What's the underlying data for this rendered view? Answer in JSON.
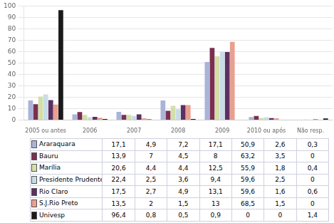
{
  "chart_data": {
    "type": "bar",
    "categories": [
      "2005 ou antes",
      "2006",
      "2007",
      "2008",
      "2009",
      "2010 ou após",
      "Não resp."
    ],
    "series": [
      {
        "name": "Araraquara",
        "color": "#aab4d8",
        "values": [
          17.1,
          4.9,
          7.2,
          17.1,
          50.9,
          2.6,
          0.3
        ],
        "value_labels": [
          "17,1",
          "4,9",
          "7,2",
          "17,1",
          "50,9",
          "2,6",
          "0,3"
        ]
      },
      {
        "name": "Bauru",
        "color": "#7b3050",
        "values": [
          13.9,
          7.0,
          4.5,
          8.0,
          63.2,
          3.5,
          0.0
        ],
        "value_labels": [
          "13,9",
          "7",
          "4,5",
          "8",
          "63,2",
          "3,5",
          "0"
        ]
      },
      {
        "name": "Marília",
        "color": "#d4dfa8",
        "values": [
          20.6,
          4.4,
          4.4,
          12.5,
          55.9,
          1.8,
          0.4
        ],
        "value_labels": [
          "20,6",
          "4,4",
          "4,4",
          "12,5",
          "55,9",
          "1,8",
          "0,4"
        ]
      },
      {
        "name": "Presidente Prudente",
        "color": "#c8dce8",
        "values": [
          22.4,
          2.5,
          3.6,
          9.4,
          59.6,
          2.5,
          0.0
        ],
        "value_labels": [
          "22,4",
          "2,5",
          "3,6",
          "9,4",
          "59,6",
          "2,5",
          "0"
        ]
      },
      {
        "name": "Rio Claro",
        "color": "#5c3060",
        "values": [
          17.5,
          2.7,
          4.9,
          13.1,
          59.6,
          1.6,
          0.6
        ],
        "value_labels": [
          "17,5",
          "2,7",
          "4,9",
          "13,1",
          "59,6",
          "1,6",
          "0,6"
        ]
      },
      {
        "name": "S.J.Rio Preto",
        "color": "#e8a090",
        "values": [
          13.5,
          2.0,
          1.5,
          13.0,
          68.5,
          1.5,
          0.0
        ],
        "value_labels": [
          "13,5",
          "2",
          "1,5",
          "13",
          "68,5",
          "1,5",
          "0"
        ]
      },
      {
        "name": "Univesp",
        "color": "#1a1a1a",
        "values": [
          96.4,
          0.8,
          0.5,
          0.9,
          0.0,
          0.0,
          1.4
        ],
        "value_labels": [
          "96,4",
          "0,8",
          "0,5",
          "0,9",
          "0",
          "0",
          "1,4"
        ]
      }
    ],
    "ylim": [
      0,
      100
    ],
    "yticks": [
      0,
      10,
      20,
      30,
      40,
      50,
      60,
      70,
      80,
      90,
      100
    ],
    "grid": true
  }
}
